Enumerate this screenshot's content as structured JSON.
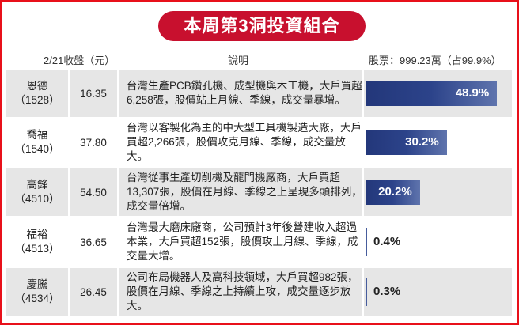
{
  "title": "本周第3洞投資組合",
  "headers": {
    "price": "2/21收盤（元）",
    "desc": "說明",
    "stock": "股票：999.23萬（占99.9%）"
  },
  "colors": {
    "title_bg": "#c8102e",
    "bar": "#2c438a",
    "border": "#e8101a"
  },
  "chart_data": {
    "type": "bar",
    "orientation": "horizontal",
    "title": "本周第3洞投資組合",
    "categories": [
      "恩德（1528）",
      "喬福（1540）",
      "高鋒（4510）",
      "福裕（4513）",
      "慶騰（4534）"
    ],
    "values": [
      48.9,
      30.2,
      20.2,
      0.4,
      0.3
    ],
    "unit": "%",
    "xlim": [
      0,
      50
    ]
  },
  "rows": [
    {
      "name": "恩德",
      "code": "（1528）",
      "price": "16.35",
      "desc": "台灣生產PCB鑽孔機、成型機與木工機，大戶買超6,258張，股價站上月線、季線，成交量暴增。",
      "pct": "48.9%"
    },
    {
      "name": "喬福",
      "code": "（1540）",
      "price": "37.80",
      "desc": "台灣以客製化為主的中大型工具機製造大廠，大戶買超2,266張，股價攻克月線、季線，成交量放大。",
      "pct": "30.2%"
    },
    {
      "name": "高鋒",
      "code": "（4510）",
      "price": "54.50",
      "desc": "台灣從事生產切削機及龍門機廠商，大戶買超13,307張，股價在月線、季線之上呈現多頭排列，成交量倍增。",
      "pct": "20.2%"
    },
    {
      "name": "福裕",
      "code": "（4513）",
      "price": "36.65",
      "desc": "台灣最大磨床廠商，公司預計3年後營建收入超過本業，大戶買超152張，股價攻上月線、季線，成交量大增。",
      "pct": "0.4%"
    },
    {
      "name": "慶騰",
      "code": "（4534）",
      "price": "26.45",
      "desc": "公司布局機器人及高科技領域，大戶買超982張，股價在月線、季線之上持續上攻，成交量逐步放大。",
      "pct": "0.3%"
    }
  ]
}
